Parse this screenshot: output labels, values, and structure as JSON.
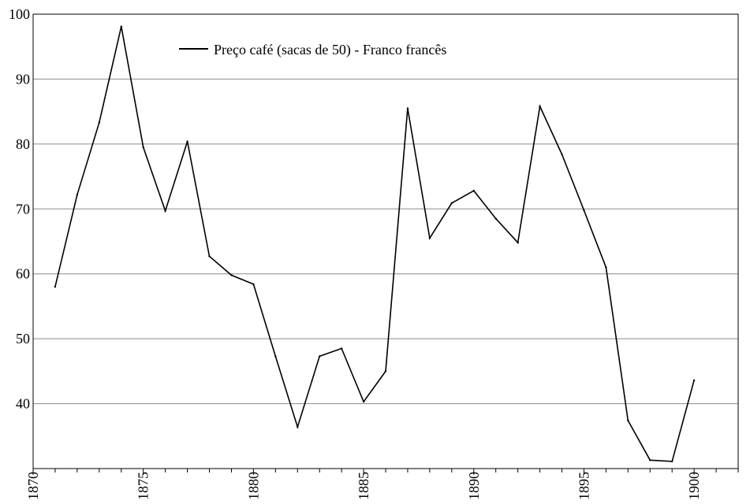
{
  "chart_data": {
    "type": "line",
    "title": "",
    "xlabel": "",
    "ylabel": "",
    "xlim": [
      1870,
      1902
    ],
    "ylim": [
      30,
      100
    ],
    "x_ticks": [
      1870,
      1875,
      1880,
      1885,
      1890,
      1895,
      1900
    ],
    "y_ticks": [
      40,
      50,
      60,
      70,
      80,
      90,
      100
    ],
    "x_tick_labels": [
      "1870",
      "1875",
      "1880",
      "1885",
      "1890",
      "1895",
      "1900"
    ],
    "y_tick_labels": [
      "40",
      "50",
      "60",
      "70",
      "80",
      "90",
      "100"
    ],
    "grid": "horizontal",
    "legend_position": "top-center",
    "series": [
      {
        "name": "Preço café (sacas de 50) - Franco francês",
        "color": "#000000",
        "x": [
          1871,
          1872,
          1873,
          1874,
          1875,
          1876,
          1877,
          1878,
          1879,
          1880,
          1881,
          1882,
          1883,
          1884,
          1885,
          1886,
          1887,
          1888,
          1889,
          1890,
          1891,
          1892,
          1893,
          1894,
          1895,
          1896,
          1897,
          1898,
          1899,
          1900
        ],
        "y": [
          58.0,
          72.2,
          83.3,
          98.1,
          79.5,
          69.7,
          80.4,
          62.7,
          59.8,
          58.4,
          47.3,
          36.4,
          47.3,
          48.5,
          40.3,
          45.0,
          85.5,
          65.5,
          70.9,
          72.8,
          68.5,
          64.8,
          85.8,
          78.4,
          69.8,
          61.0,
          37.4,
          31.3,
          31.1,
          43.6
        ]
      }
    ]
  }
}
